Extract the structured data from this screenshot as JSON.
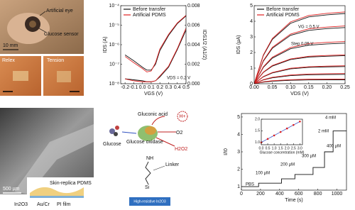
{
  "chart_data": [
    {
      "type": "line",
      "xlabel": "VGS (V)",
      "ylabel": "IDS (A)",
      "y2label": "IDS1/2 (A1/2)",
      "x": [
        -0.2,
        -0.1,
        0,
        0.05,
        0.1,
        0.15,
        0.2,
        0.3,
        0.4,
        0.5
      ],
      "xlim": [
        -0.25,
        0.5
      ],
      "xticks": [
        -0.2,
        -0.1,
        {
          "value": 0,
          "label": "0.0"
        },
        0.1,
        0.2,
        0.3,
        0.4,
        0.5
      ],
      "ylog": true,
      "ylim": [
        1e-08,
        0.0001
      ],
      "yticks": [
        {
          "value": 1e-08,
          "label": "10⁻⁸"
        },
        {
          "value": 1e-07,
          "label": "10⁻⁷"
        },
        {
          "value": 1e-06,
          "label": "10⁻⁶"
        },
        {
          "value": 1e-05,
          "label": "10⁻⁵"
        },
        {
          "value": 0.0001,
          "label": "10⁻⁴"
        }
      ],
      "y2lim": [
        0,
        0.008
      ],
      "y2ticks": [
        {
          "value": 0,
          "label": "0.000"
        },
        {
          "value": 0.002,
          "label": "0.002"
        },
        {
          "value": 0.004,
          "label": "0.004"
        },
        {
          "value": 0.006,
          "label": "0.006"
        },
        {
          "value": 0.008,
          "label": "0.008"
        }
      ],
      "legend": "upper left",
      "annotations": [
        "VDS = 0.2 V"
      ],
      "series": [
        {
          "name": "Before transfer",
          "color": "#111111",
          "values": [
            3e-07,
            1.5e-07,
            7e-08,
            5e-08,
            5e-08,
            1e-07,
            5e-07,
            3e-06,
            1.2e-05,
            3e-05
          ]
        },
        {
          "name": "Artificial PDMS",
          "color": "#e02020",
          "values": [
            2.5e-07,
            1.2e-07,
            6e-08,
            4e-08,
            4.5e-08,
            1.2e-07,
            6e-07,
            3.4e-06,
            1.3e-05,
            3.2e-05
          ]
        },
        {
          "color": "#111111",
          "axis": "y2",
          "values": [
            0.0005,
            0.0004,
            0.0003,
            0.0002,
            0.0002,
            0.0003,
            0.0007,
            0.0017,
            0.0035,
            0.0055
          ]
        },
        {
          "color": "#e02020",
          "axis": "y2",
          "values": [
            0.0005,
            0.0003,
            0.0002,
            0.0002,
            0.0002,
            0.0003,
            0.0008,
            0.0018,
            0.0036,
            0.0057
          ]
        }
      ]
    },
    {
      "type": "line",
      "xlabel": "VDS (V)",
      "ylabel": "IDS (µA)",
      "x": [
        0,
        0.025,
        0.05,
        0.1,
        0.15,
        0.2,
        0.25
      ],
      "xlim": [
        0,
        0.25
      ],
      "xticks": [
        {
          "value": 0,
          "label": "0.00"
        },
        0.05,
        {
          "value": 0.1,
          "label": "0.10"
        },
        0.15,
        {
          "value": 0.2,
          "label": "0.20"
        },
        0.25
      ],
      "ylim": [
        0,
        5
      ],
      "yticks": [
        0,
        1,
        2,
        3,
        4,
        5
      ],
      "legend": "upper left",
      "annotations": [
        "VG = 0.5 V",
        "Step 0.05 V"
      ],
      "series": [
        {
          "name": "Before transfer",
          "color": "#111111",
          "values": [
            0,
            1.8,
            2.84,
            3.87,
            4.28,
            4.41,
            4.5
          ]
        },
        {
          "name": "Artificial PDMS",
          "color": "#e02020",
          "values": [
            0,
            1.84,
            2.9,
            3.96,
            4.37,
            4.51,
            4.6
          ]
        },
        {
          "color": "#111111",
          "values": [
            0,
            1.44,
            2.27,
            3.1,
            3.42,
            3.53,
            3.6
          ]
        },
        {
          "color": "#e02020",
          "values": [
            0,
            1.48,
            2.33,
            3.18,
            3.52,
            3.63,
            3.7
          ]
        },
        {
          "color": "#111111",
          "values": [
            0,
            1.04,
            1.64,
            2.24,
            2.47,
            2.55,
            2.6
          ]
        },
        {
          "color": "#e02020",
          "values": [
            0,
            1.08,
            1.7,
            2.32,
            2.57,
            2.65,
            2.7
          ]
        },
        {
          "color": "#111111",
          "values": [
            0,
            0.72,
            1.13,
            1.55,
            1.71,
            1.76,
            1.8
          ]
        },
        {
          "color": "#e02020",
          "values": [
            0,
            0.74,
            1.17,
            1.59,
            1.76,
            1.81,
            1.85
          ]
        },
        {
          "color": "#111111",
          "values": [
            0,
            0.44,
            0.69,
            0.95,
            1.05,
            1.08,
            1.1
          ]
        },
        {
          "color": "#e02020",
          "values": [
            0,
            0.46,
            0.72,
            0.99,
            1.09,
            1.13,
            1.15
          ]
        },
        {
          "color": "#111111",
          "values": [
            0,
            0.24,
            0.38,
            0.52,
            0.57,
            0.59,
            0.6
          ]
        },
        {
          "color": "#e02020",
          "values": [
            0,
            0.26,
            0.41,
            0.56,
            0.62,
            0.64,
            0.65
          ]
        },
        {
          "color": "#111111",
          "values": [
            0,
            0.1,
            0.16,
            0.22,
            0.24,
            0.25,
            0.25
          ]
        },
        {
          "color": "#e02020",
          "values": [
            0,
            0.12,
            0.19,
            0.26,
            0.29,
            0.29,
            0.3
          ]
        }
      ]
    },
    {
      "type": "line",
      "xlabel": "Time (s)",
      "ylabel": "I/I0",
      "x": [
        0,
        180,
        180,
        420,
        420,
        560,
        560,
        750,
        750,
        870,
        870,
        960,
        960,
        1100
      ],
      "xlim": [
        0,
        1100
      ],
      "xticks": [
        0,
        200,
        400,
        600,
        800,
        1000
      ],
      "ylim": [
        0.8,
        5.2
      ],
      "yticks": [
        1,
        2,
        3,
        4,
        5
      ],
      "annotations": [
        "PBS",
        "100 µM",
        "200 µM",
        "300 µM",
        "400 µM",
        "2 mM",
        "4 mM"
      ],
      "series": [
        {
          "color": "#111111",
          "values": [
            1.0,
            1.0,
            1.2,
            1.2,
            1.45,
            1.45,
            1.7,
            1.7,
            2.1,
            2.1,
            3.0,
            3.0,
            4.2,
            4.2
          ]
        }
      ]
    },
    {
      "type": "line",
      "xlabel": "Glucose concentration (mM)",
      "x": [
        0,
        0.5,
        1,
        1.5,
        2,
        2.5,
        3
      ],
      "xlim": [
        0,
        3.2
      ],
      "xticks": [
        {
          "value": 0,
          "label": "0.0"
        },
        0.5,
        {
          "value": 1,
          "label": "1.0"
        },
        1.5,
        {
          "value": 2,
          "label": "2.0"
        },
        2.5,
        {
          "value": 3,
          "label": "3.0"
        }
      ],
      "ylim": [
        0.9,
        2.0
      ],
      "yticks": [
        {
          "value": 1,
          "label": "1.0"
        },
        1.5,
        {
          "value": 2,
          "label": "2.0"
        }
      ],
      "markers": true,
      "marker_color": "#e02020",
      "series": [
        {
          "color": "#2a3fbf",
          "values": [
            1.0,
            1.15,
            1.3,
            1.45,
            1.6,
            1.75,
            1.9
          ]
        }
      ]
    }
  ],
  "photo_top": {
    "eye": "Artificial eye",
    "sensor": "Glucose sensor",
    "scale": "10 mm",
    "relax": "Relex",
    "tension": "Tension"
  },
  "photo_sem": {
    "scale": "500 µm",
    "layer": "Skin-replica PDMS",
    "oxide": "In2O3",
    "metal": "Au/Cr",
    "film": "PI film"
  },
  "diagram": {
    "glucose": "Glucose",
    "gluconic": "Gluconic acid",
    "enzyme": "Glucose oxidase",
    "o2": "O2",
    "h2o2": "H2O2",
    "proton": "H+",
    "linker": "Linker",
    "nh": "NH",
    "si": "Si",
    "substrate": "High-resistive In2O3"
  }
}
